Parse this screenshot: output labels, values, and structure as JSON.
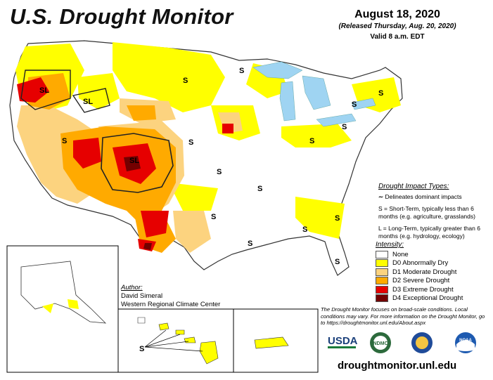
{
  "title": "U.S. Drought Monitor",
  "date": "August 18, 2020",
  "released": "(Released Thursday, Aug. 20, 2020)",
  "valid": "Valid 8 a.m. EDT",
  "impact_types": {
    "title": "Drought Impact Types:",
    "delineates": "Delineates dominant impacts",
    "short_term": "S = Short-Term, typically less than 6 months (e.g. agriculture, grasslands)",
    "long_term": "L = Long-Term, typically greater than 6 months (e.g. hydrology, ecology)"
  },
  "intensity": {
    "title": "Intensity:",
    "levels": [
      {
        "label": "None",
        "color": "#ffffff"
      },
      {
        "label": "D0 Abnormally Dry",
        "color": "#ffff00"
      },
      {
        "label": "D1 Moderate Drought",
        "color": "#fcd37f"
      },
      {
        "label": "D2 Severe Drought",
        "color": "#ffaa00"
      },
      {
        "label": "D3 Extreme Drought",
        "color": "#e60000"
      },
      {
        "label": "D4 Exceptional Drought",
        "color": "#730000"
      }
    ]
  },
  "author": {
    "title": "Author:",
    "name": "David Simeral",
    "org": "Western Regional Climate Center"
  },
  "note": "The Drought Monitor focuses on broad-scale conditions. Local conditions may vary. For more information on the Drought Monitor, go to https://droughtmonitor.unl.edu/About.aspx",
  "logos": {
    "usda": "USDA",
    "ndmc": "NDMC",
    "noaa": "NOAA"
  },
  "url": "droughtmonitor.unl.edu",
  "map_labels": {
    "sl": "SL",
    "s": "S",
    "l": "L"
  }
}
